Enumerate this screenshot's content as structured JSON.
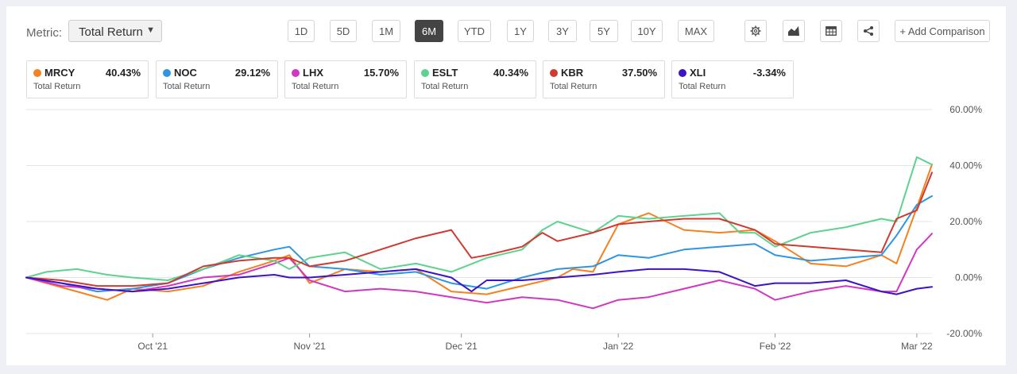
{
  "toolbar": {
    "metric_label": "Metric:",
    "metric_value": "Total Return",
    "ranges": [
      "1D",
      "5D",
      "1M",
      "6M",
      "YTD",
      "1Y",
      "3Y",
      "5Y",
      "10Y",
      "MAX"
    ],
    "active_range": "6M",
    "add_comparison": "+ Add Comparison"
  },
  "cards": [
    {
      "ticker": "MRCY",
      "value": "40.43%",
      "sub": "Total Return",
      "color": "#f5811f"
    },
    {
      "ticker": "NOC",
      "value": "29.12%",
      "sub": "Total Return",
      "color": "#2e95e3"
    },
    {
      "ticker": "LHX",
      "value": "15.70%",
      "sub": "Total Return",
      "color": "#d237c2"
    },
    {
      "ticker": "ESLT",
      "value": "40.34%",
      "sub": "Total Return",
      "color": "#5ed28f"
    },
    {
      "ticker": "KBR",
      "value": "37.50%",
      "sub": "Total Return",
      "color": "#cf3a31"
    },
    {
      "ticker": "XLI",
      "value": "-3.34%",
      "sub": "Total Return",
      "color": "#3d13c9"
    }
  ],
  "chart_data": {
    "type": "line",
    "y_unit": "%",
    "ylim": [
      -20,
      60
    ],
    "yticks": [
      60,
      40,
      20,
      0,
      -20
    ],
    "ytick_labels": [
      "60.00%",
      "40.00%",
      "20.00%",
      "0.00%",
      "-20.00%"
    ],
    "xlim": [
      "2021-09-06",
      "2022-03-04"
    ],
    "xticks": [
      {
        "date": "2021-10-01",
        "label": "Oct '21"
      },
      {
        "date": "2021-11-01",
        "label": "Nov '21"
      },
      {
        "date": "2021-12-01",
        "label": "Dec '21"
      },
      {
        "date": "2022-01-01",
        "label": "Jan '22"
      },
      {
        "date": "2022-02-01",
        "label": "Feb '22"
      },
      {
        "date": "2022-03-01",
        "label": "Mar '22"
      }
    ],
    "grid": true,
    "series": [
      {
        "name": "MRCY",
        "color": "#f5811f",
        "points": [
          [
            "2021-09-06",
            0
          ],
          [
            "2021-09-10",
            -2
          ],
          [
            "2021-09-16",
            -5
          ],
          [
            "2021-09-22",
            -8
          ],
          [
            "2021-09-27",
            -4
          ],
          [
            "2021-10-04",
            -5
          ],
          [
            "2021-10-11",
            -3
          ],
          [
            "2021-10-18",
            2
          ],
          [
            "2021-10-25",
            6
          ],
          [
            "2021-10-28",
            8
          ],
          [
            "2021-11-01",
            -2
          ],
          [
            "2021-11-08",
            3
          ],
          [
            "2021-11-15",
            2
          ],
          [
            "2021-11-22",
            3
          ],
          [
            "2021-11-29",
            -5
          ],
          [
            "2021-12-06",
            -6
          ],
          [
            "2021-12-13",
            -3
          ],
          [
            "2021-12-20",
            0
          ],
          [
            "2021-12-23",
            3
          ],
          [
            "2021-12-27",
            2
          ],
          [
            "2022-01-01",
            19
          ],
          [
            "2022-01-07",
            23
          ],
          [
            "2022-01-14",
            17
          ],
          [
            "2022-01-21",
            16
          ],
          [
            "2022-01-28",
            17
          ],
          [
            "2022-02-01",
            13
          ],
          [
            "2022-02-08",
            5
          ],
          [
            "2022-02-15",
            4
          ],
          [
            "2022-02-22",
            8
          ],
          [
            "2022-02-25",
            5
          ],
          [
            "2022-03-01",
            25
          ],
          [
            "2022-03-04",
            40.43
          ]
        ]
      },
      {
        "name": "NOC",
        "color": "#2e95e3",
        "points": [
          [
            "2021-09-06",
            0
          ],
          [
            "2021-09-13",
            -2
          ],
          [
            "2021-09-20",
            -5
          ],
          [
            "2021-09-27",
            -4
          ],
          [
            "2021-10-04",
            -2
          ],
          [
            "2021-10-11",
            3
          ],
          [
            "2021-10-18",
            7
          ],
          [
            "2021-10-25",
            10
          ],
          [
            "2021-10-28",
            11
          ],
          [
            "2021-11-01",
            4
          ],
          [
            "2021-11-08",
            3
          ],
          [
            "2021-11-15",
            1
          ],
          [
            "2021-11-22",
            2
          ],
          [
            "2021-11-29",
            -2
          ],
          [
            "2021-12-06",
            -4
          ],
          [
            "2021-12-13",
            0
          ],
          [
            "2021-12-20",
            3
          ],
          [
            "2021-12-27",
            4
          ],
          [
            "2022-01-01",
            8
          ],
          [
            "2022-01-07",
            7
          ],
          [
            "2022-01-14",
            10
          ],
          [
            "2022-01-21",
            11
          ],
          [
            "2022-01-28",
            12
          ],
          [
            "2022-02-01",
            8
          ],
          [
            "2022-02-08",
            6
          ],
          [
            "2022-02-15",
            7
          ],
          [
            "2022-02-22",
            8
          ],
          [
            "2022-02-25",
            15
          ],
          [
            "2022-03-01",
            26
          ],
          [
            "2022-03-04",
            29.12
          ]
        ]
      },
      {
        "name": "LHX",
        "color": "#d237c2",
        "points": [
          [
            "2021-09-06",
            0
          ],
          [
            "2021-09-13",
            -3
          ],
          [
            "2021-09-20",
            -4
          ],
          [
            "2021-09-27",
            -5
          ],
          [
            "2021-10-04",
            -3
          ],
          [
            "2021-10-11",
            0
          ],
          [
            "2021-10-18",
            1
          ],
          [
            "2021-10-25",
            5
          ],
          [
            "2021-10-28",
            7
          ],
          [
            "2021-11-01",
            -1
          ],
          [
            "2021-11-08",
            -5
          ],
          [
            "2021-11-15",
            -4
          ],
          [
            "2021-11-22",
            -5
          ],
          [
            "2021-11-29",
            -7
          ],
          [
            "2021-12-06",
            -9
          ],
          [
            "2021-12-13",
            -7
          ],
          [
            "2021-12-20",
            -8
          ],
          [
            "2021-12-27",
            -11
          ],
          [
            "2022-01-01",
            -8
          ],
          [
            "2022-01-07",
            -7
          ],
          [
            "2022-01-14",
            -4
          ],
          [
            "2022-01-21",
            -1
          ],
          [
            "2022-01-28",
            -4
          ],
          [
            "2022-02-01",
            -8
          ],
          [
            "2022-02-08",
            -5
          ],
          [
            "2022-02-15",
            -3
          ],
          [
            "2022-02-22",
            -5
          ],
          [
            "2022-02-25",
            -5
          ],
          [
            "2022-03-01",
            10
          ],
          [
            "2022-03-04",
            15.7
          ]
        ]
      },
      {
        "name": "ESLT",
        "color": "#5ed28f",
        "points": [
          [
            "2021-09-06",
            0
          ],
          [
            "2021-09-10",
            2
          ],
          [
            "2021-09-16",
            3
          ],
          [
            "2021-09-22",
            1
          ],
          [
            "2021-09-27",
            0
          ],
          [
            "2021-10-04",
            -1
          ],
          [
            "2021-10-11",
            3
          ],
          [
            "2021-10-18",
            8
          ],
          [
            "2021-10-25",
            6
          ],
          [
            "2021-10-28",
            3
          ],
          [
            "2021-11-01",
            7
          ],
          [
            "2021-11-08",
            9
          ],
          [
            "2021-11-15",
            3
          ],
          [
            "2021-11-22",
            5
          ],
          [
            "2021-11-29",
            2
          ],
          [
            "2021-12-06",
            7
          ],
          [
            "2021-12-13",
            10
          ],
          [
            "2021-12-17",
            17
          ],
          [
            "2021-12-20",
            20
          ],
          [
            "2021-12-27",
            16
          ],
          [
            "2022-01-01",
            22
          ],
          [
            "2022-01-07",
            21
          ],
          [
            "2022-01-14",
            22
          ],
          [
            "2022-01-21",
            23
          ],
          [
            "2022-01-25",
            16
          ],
          [
            "2022-01-28",
            16
          ],
          [
            "2022-02-01",
            11
          ],
          [
            "2022-02-08",
            16
          ],
          [
            "2022-02-15",
            18
          ],
          [
            "2022-02-22",
            21
          ],
          [
            "2022-02-25",
            20
          ],
          [
            "2022-03-01",
            43
          ],
          [
            "2022-03-04",
            40.34
          ]
        ]
      },
      {
        "name": "KBR",
        "color": "#cf3a31",
        "points": [
          [
            "2021-09-06",
            0
          ],
          [
            "2021-09-13",
            -1
          ],
          [
            "2021-09-20",
            -3
          ],
          [
            "2021-09-27",
            -3
          ],
          [
            "2021-10-04",
            -2
          ],
          [
            "2021-10-11",
            4
          ],
          [
            "2021-10-18",
            6
          ],
          [
            "2021-10-25",
            7
          ],
          [
            "2021-10-28",
            7
          ],
          [
            "2021-11-01",
            4
          ],
          [
            "2021-11-08",
            6
          ],
          [
            "2021-11-15",
            10
          ],
          [
            "2021-11-22",
            14
          ],
          [
            "2021-11-29",
            17
          ],
          [
            "2021-12-03",
            7
          ],
          [
            "2021-12-06",
            8
          ],
          [
            "2021-12-13",
            11
          ],
          [
            "2021-12-17",
            16
          ],
          [
            "2021-12-20",
            13
          ],
          [
            "2021-12-27",
            16
          ],
          [
            "2022-01-01",
            19
          ],
          [
            "2022-01-07",
            20
          ],
          [
            "2022-01-14",
            21
          ],
          [
            "2022-01-21",
            21
          ],
          [
            "2022-01-28",
            17
          ],
          [
            "2022-02-01",
            12
          ],
          [
            "2022-02-08",
            11
          ],
          [
            "2022-02-15",
            10
          ],
          [
            "2022-02-22",
            9
          ],
          [
            "2022-02-25",
            21
          ],
          [
            "2022-03-01",
            24
          ],
          [
            "2022-03-04",
            37.5
          ]
        ]
      },
      {
        "name": "XLI",
        "color": "#3d13c9",
        "points": [
          [
            "2021-09-06",
            0
          ],
          [
            "2021-09-13",
            -2
          ],
          [
            "2021-09-20",
            -4
          ],
          [
            "2021-09-27",
            -5
          ],
          [
            "2021-10-04",
            -4
          ],
          [
            "2021-10-11",
            -2
          ],
          [
            "2021-10-18",
            0
          ],
          [
            "2021-10-25",
            1
          ],
          [
            "2021-10-28",
            0
          ],
          [
            "2021-11-01",
            0
          ],
          [
            "2021-11-08",
            1
          ],
          [
            "2021-11-15",
            2
          ],
          [
            "2021-11-22",
            3
          ],
          [
            "2021-11-29",
            0
          ],
          [
            "2021-12-03",
            -5
          ],
          [
            "2021-12-06",
            -1
          ],
          [
            "2021-12-13",
            -1
          ],
          [
            "2021-12-20",
            0
          ],
          [
            "2021-12-27",
            1
          ],
          [
            "2022-01-01",
            2
          ],
          [
            "2022-01-07",
            3
          ],
          [
            "2022-01-14",
            3
          ],
          [
            "2022-01-21",
            2
          ],
          [
            "2022-01-28",
            -3
          ],
          [
            "2022-02-01",
            -2
          ],
          [
            "2022-02-08",
            -2
          ],
          [
            "2022-02-15",
            -1
          ],
          [
            "2022-02-22",
            -5
          ],
          [
            "2022-02-25",
            -6
          ],
          [
            "2022-03-01",
            -4
          ],
          [
            "2022-03-04",
            -3.34
          ]
        ]
      }
    ]
  }
}
